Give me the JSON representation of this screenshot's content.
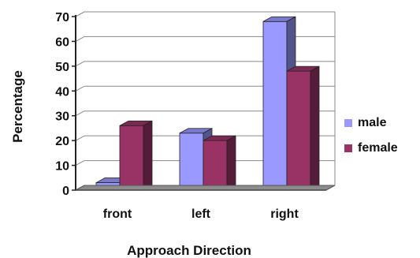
{
  "chart_data": {
    "type": "bar",
    "title": "",
    "xlabel": "Approach Direction",
    "ylabel": "Percentage",
    "categories": [
      "front",
      "left",
      "right"
    ],
    "ylim": [
      0,
      70
    ],
    "yticks": [
      "0",
      "10",
      "20",
      "30",
      "40",
      "50",
      "60",
      "70"
    ],
    "grid": true,
    "legend_position": "right",
    "series": [
      {
        "name": "male",
        "values": [
          3,
          23,
          68
        ],
        "color": "#9999ff"
      },
      {
        "name": "female",
        "values": [
          26,
          20,
          48
        ],
        "color": "#993366"
      }
    ]
  }
}
